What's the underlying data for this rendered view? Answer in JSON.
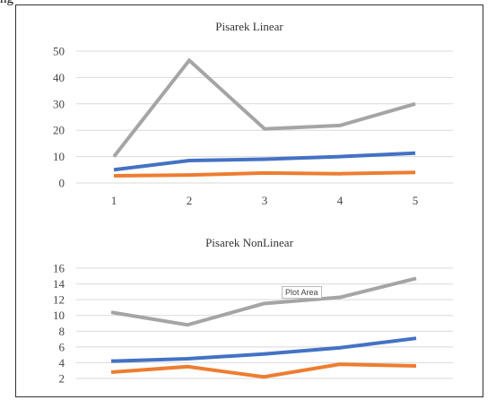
{
  "caption": "ng",
  "tooltip": "Plot Area",
  "colors": {
    "blue": "#4472c4",
    "orange": "#ed7d31",
    "gray": "#a5a5a5",
    "grid": "#d9d9d9"
  },
  "chart_data": [
    {
      "type": "line",
      "title": "Pisarek Linear",
      "categories": [
        "1",
        "2",
        "3",
        "4",
        "5"
      ],
      "ylim": [
        0,
        50
      ],
      "yticks": [
        "0",
        "10",
        "20",
        "30",
        "40",
        "50"
      ],
      "grid": true,
      "series": [
        {
          "color": "#a5a5a5",
          "values": [
            10,
            46.5,
            20.5,
            21.8,
            30
          ]
        },
        {
          "color": "#4472c4",
          "values": [
            5,
            8.5,
            9,
            10,
            11.3
          ]
        },
        {
          "color": "#ed7d31",
          "values": [
            2.7,
            3,
            3.8,
            3.5,
            4
          ]
        }
      ]
    },
    {
      "type": "line",
      "title": "Pisarek NonLinear",
      "categories": [
        "",
        "",
        "",
        "",
        ""
      ],
      "ylim": [
        2,
        16
      ],
      "yticks": [
        "2",
        "4",
        "6",
        "8",
        "10",
        "12",
        "14",
        "16"
      ],
      "grid": true,
      "series": [
        {
          "color": "#a5a5a5",
          "values": [
            10.4,
            8.8,
            11.5,
            12.3,
            14.7
          ]
        },
        {
          "color": "#4472c4",
          "values": [
            4.2,
            4.5,
            5.1,
            5.9,
            7.1
          ]
        },
        {
          "color": "#ed7d31",
          "values": [
            2.8,
            3.5,
            2.2,
            3.8,
            3.6
          ]
        }
      ]
    }
  ]
}
